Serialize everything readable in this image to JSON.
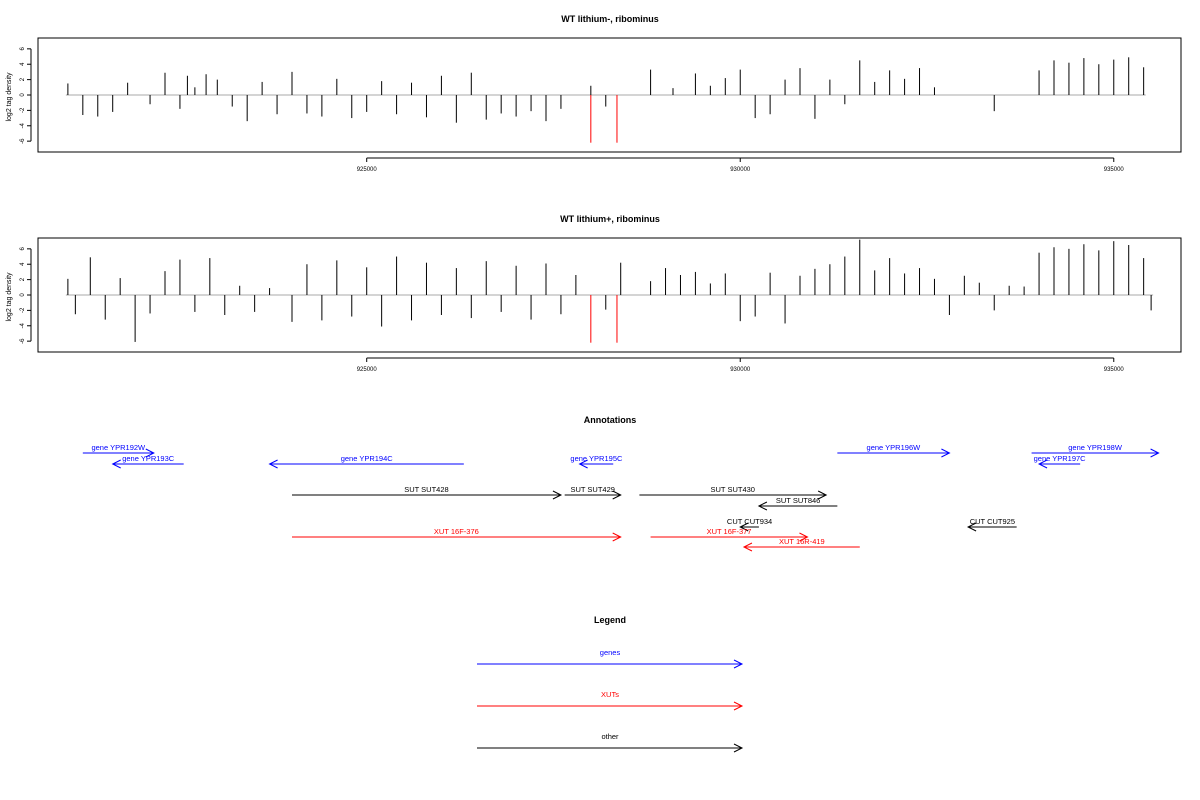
{
  "chart_data": [
    {
      "type": "bar",
      "title": "WT lithium-, ribominus",
      "ylabel": "log2 tag density",
      "xlabel": "",
      "xlim": [
        920600,
        935900
      ],
      "ylim": [
        -6.5,
        6.5
      ],
      "xticks": [
        925000,
        930000,
        935000
      ],
      "yticks": [
        -6,
        -4,
        -2,
        0,
        2,
        4,
        6
      ],
      "grid": false,
      "series": [
        {
          "color": "#000000",
          "x": [
            921000,
            921200,
            921400,
            921600,
            921800,
            922100,
            922300,
            922500,
            922600,
            922700,
            922850,
            923000,
            923200,
            923400,
            923600,
            923800,
            924000,
            924200,
            924400,
            924600,
            924800,
            925000,
            925200,
            925400,
            925600,
            925800,
            926000,
            926200,
            926400,
            926600,
            926800,
            927000,
            927200,
            927400,
            927600,
            928000,
            928200,
            928800,
            929100,
            929400,
            929600,
            929800,
            930000,
            930200,
            930400,
            930600,
            930800,
            931000,
            931200,
            931400,
            931600,
            931800,
            932000,
            932200,
            932400,
            932600,
            933400,
            934000,
            934200,
            934400,
            934600,
            934800,
            935000,
            935200,
            935400
          ],
          "y": [
            1.5,
            -2.6,
            -2.8,
            -2.2,
            1.6,
            -1.2,
            2.9,
            -1.8,
            2.5,
            1.0,
            2.7,
            2.0,
            -1.5,
            -3.4,
            1.7,
            -2.5,
            3.0,
            -2.4,
            -2.8,
            2.1,
            -3.0,
            -2.2,
            1.8,
            -2.5,
            1.6,
            -2.9,
            2.5,
            -3.6,
            2.9,
            -3.2,
            -2.4,
            -2.8,
            -2.1,
            -3.4,
            -1.8,
            1.2,
            -1.5,
            3.3,
            0.9,
            2.8,
            1.2,
            2.2,
            3.3,
            -3.0,
            -2.5,
            2.0,
            3.5,
            -3.1,
            2.0,
            -1.2,
            4.5,
            1.7,
            3.2,
            2.1,
            3.5,
            1.0,
            -2.1,
            3.2,
            4.5,
            4.2,
            4.8,
            4.0,
            4.6,
            4.9,
            3.6
          ]
        },
        {
          "color": "#ff0000",
          "x": [
            928000,
            928350
          ],
          "y": [
            -6.2,
            -6.2
          ]
        }
      ]
    },
    {
      "type": "bar",
      "title": "WT lithium+, ribominus",
      "ylabel": "log2 tag density",
      "xlabel": "",
      "xlim": [
        920600,
        935900
      ],
      "ylim": [
        -6.5,
        6.5
      ],
      "xticks": [
        925000,
        930000,
        935000
      ],
      "yticks": [
        -6,
        -4,
        -2,
        0,
        2,
        4,
        6
      ],
      "grid": false,
      "series": [
        {
          "color": "#000000",
          "x": [
            921000,
            921100,
            921300,
            921500,
            921700,
            921900,
            922100,
            922300,
            922500,
            922700,
            922900,
            923100,
            923300,
            923500,
            923700,
            924000,
            924200,
            924400,
            924600,
            924800,
            925000,
            925200,
            925400,
            925600,
            925800,
            926000,
            926200,
            926400,
            926600,
            926800,
            927000,
            927200,
            927400,
            927600,
            927800,
            928200,
            928400,
            928800,
            929000,
            929200,
            929400,
            929600,
            929800,
            930000,
            930200,
            930400,
            930600,
            930800,
            931000,
            931200,
            931400,
            931600,
            931800,
            932000,
            932200,
            932400,
            932600,
            932800,
            933000,
            933200,
            933400,
            933600,
            933800,
            934000,
            934200,
            934400,
            934600,
            934800,
            935000,
            935200,
            935400,
            935500
          ],
          "y": [
            2.1,
            -2.5,
            4.9,
            -3.2,
            2.2,
            -6.1,
            -2.4,
            3.1,
            4.6,
            -2.2,
            4.8,
            -2.6,
            1.2,
            -2.2,
            0.9,
            -3.5,
            4.0,
            -3.3,
            4.5,
            -2.8,
            3.6,
            -4.1,
            5.0,
            -3.3,
            4.2,
            -2.6,
            3.5,
            -3.0,
            4.4,
            -2.2,
            3.8,
            -3.2,
            4.1,
            -2.5,
            2.6,
            -1.9,
            4.2,
            1.8,
            3.5,
            2.6,
            3.0,
            1.5,
            2.8,
            -3.4,
            -2.8,
            2.9,
            -3.7,
            2.5,
            3.4,
            4.0,
            5.0,
            7.2,
            3.2,
            4.8,
            2.8,
            3.5,
            2.1,
            -2.6,
            2.5,
            1.6,
            -2.0,
            1.2,
            1.1,
            5.5,
            6.2,
            6.0,
            6.6,
            5.8,
            7.0,
            6.5,
            4.8,
            -2.0
          ]
        },
        {
          "color": "#ff0000",
          "x": [
            928000,
            928350
          ],
          "y": [
            -6.2,
            -6.2
          ]
        }
      ]
    }
  ],
  "annotations": {
    "title": "Annotations",
    "features": [
      {
        "label": "gene YPR192W",
        "start": 921200,
        "end": 922150,
        "dir": "right",
        "row": 0,
        "color": "#0000ff"
      },
      {
        "label": "gene YPR193C",
        "start": 921600,
        "end": 922550,
        "dir": "left",
        "row": 1,
        "color": "#0000ff"
      },
      {
        "label": "gene YPR194C",
        "start": 923700,
        "end": 926300,
        "dir": "left",
        "row": 1,
        "color": "#0000ff"
      },
      {
        "label": "gene YPR195C",
        "start": 927850,
        "end": 928300,
        "dir": "left",
        "row": 1,
        "color": "#0000ff"
      },
      {
        "label": "gene YPR196W",
        "start": 931300,
        "end": 932800,
        "dir": "right",
        "row": 0,
        "color": "#0000ff"
      },
      {
        "label": "gene YPR197C",
        "start": 934000,
        "end": 934550,
        "dir": "left",
        "row": 1,
        "color": "#0000ff"
      },
      {
        "label": "gene YPR198W",
        "start": 933900,
        "end": 935600,
        "dir": "right",
        "row": 0,
        "color": "#0000ff"
      },
      {
        "label": "SUT SUT428",
        "start": 924000,
        "end": 927600,
        "dir": "right",
        "row": 2,
        "color": "#000000"
      },
      {
        "label": "SUT SUT429",
        "start": 927650,
        "end": 928400,
        "dir": "right",
        "row": 2,
        "color": "#000000"
      },
      {
        "label": "SUT SUT430",
        "start": 928650,
        "end": 931150,
        "dir": "right",
        "row": 2,
        "color": "#000000"
      },
      {
        "label": "SUT SUT846",
        "start": 930250,
        "end": 931300,
        "dir": "left",
        "row": 3,
        "color": "#000000"
      },
      {
        "label": "CUT CUT934",
        "start": 930000,
        "end": 930250,
        "dir": "left",
        "row": 4,
        "color": "#000000"
      },
      {
        "label": "CUT CUT925",
        "start": 933050,
        "end": 933700,
        "dir": "left",
        "row": 4,
        "color": "#000000"
      },
      {
        "label": "XUT 16F-376",
        "start": 924000,
        "end": 928400,
        "dir": "right",
        "row": 5,
        "color": "#ff0000"
      },
      {
        "label": "XUT 16F-377",
        "start": 928800,
        "end": 930900,
        "dir": "right",
        "row": 5,
        "color": "#ff0000"
      },
      {
        "label": "XUT 16R-419",
        "start": 930050,
        "end": 931600,
        "dir": "left",
        "row": 6,
        "color": "#ff0000"
      }
    ]
  },
  "legend": {
    "title": "Legend",
    "items": [
      {
        "label": "genes",
        "color": "#0000ff"
      },
      {
        "label": "XUTs",
        "color": "#ff0000"
      },
      {
        "label": "other",
        "color": "#000000"
      }
    ]
  }
}
